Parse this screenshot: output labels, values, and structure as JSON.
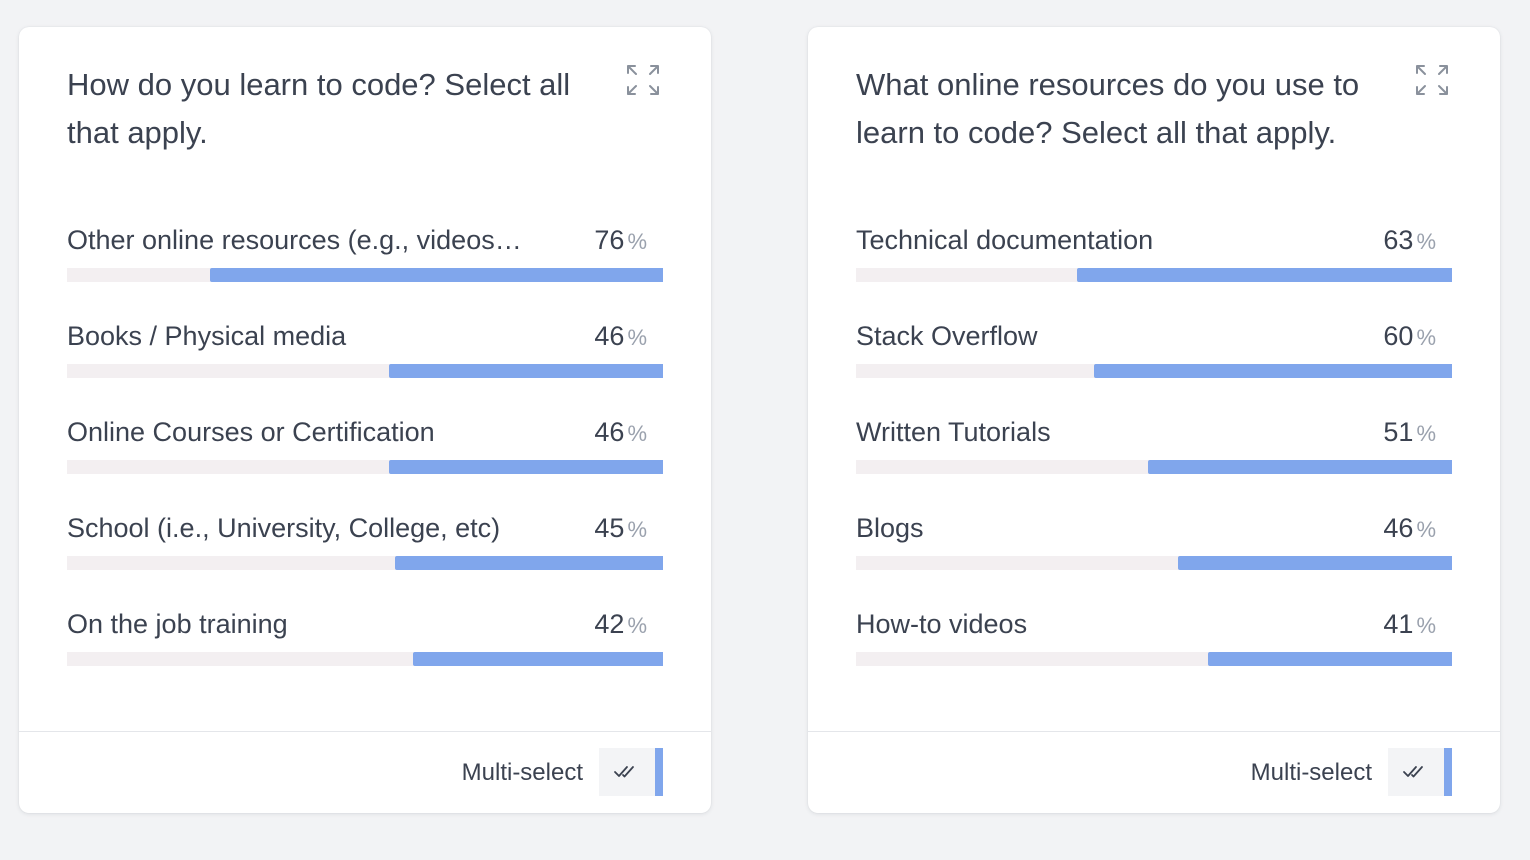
{
  "cards": [
    {
      "title": "How do you learn to code? Select all that apply.",
      "footer_label": "Multi-select",
      "icons": {
        "expand": "expand-icon",
        "check": "double-check-icon"
      }
    },
    {
      "title": "What online resources do you use to learn to code? Select all that apply.",
      "footer_label": "Multi-select",
      "icons": {
        "expand": "expand-icon",
        "check": "double-check-icon"
      }
    }
  ],
  "percent_symbol": "%",
  "colors": {
    "bar_fill": "#80a6ec",
    "bar_track": "#f3eff1",
    "background": "#f2f3f5"
  },
  "chart_data": [
    {
      "type": "bar",
      "orientation": "horizontal",
      "title": "How do you learn to code? Select all that apply.",
      "categories": [
        "Other online resources (e.g., videos…",
        "Books / Physical media",
        "Online Courses or Certification",
        "School (i.e., University, College, etc)",
        "On the job training"
      ],
      "values": [
        76,
        46,
        46,
        45,
        42
      ],
      "unit": "%",
      "xlim": [
        0,
        100
      ]
    },
    {
      "type": "bar",
      "orientation": "horizontal",
      "title": "What online resources do you use to learn to code? Select all that apply.",
      "categories": [
        "Technical documentation",
        "Stack Overflow",
        "Written Tutorials",
        "Blogs",
        "How-to videos"
      ],
      "values": [
        63,
        60,
        51,
        46,
        41
      ],
      "unit": "%",
      "xlim": [
        0,
        100
      ]
    }
  ]
}
